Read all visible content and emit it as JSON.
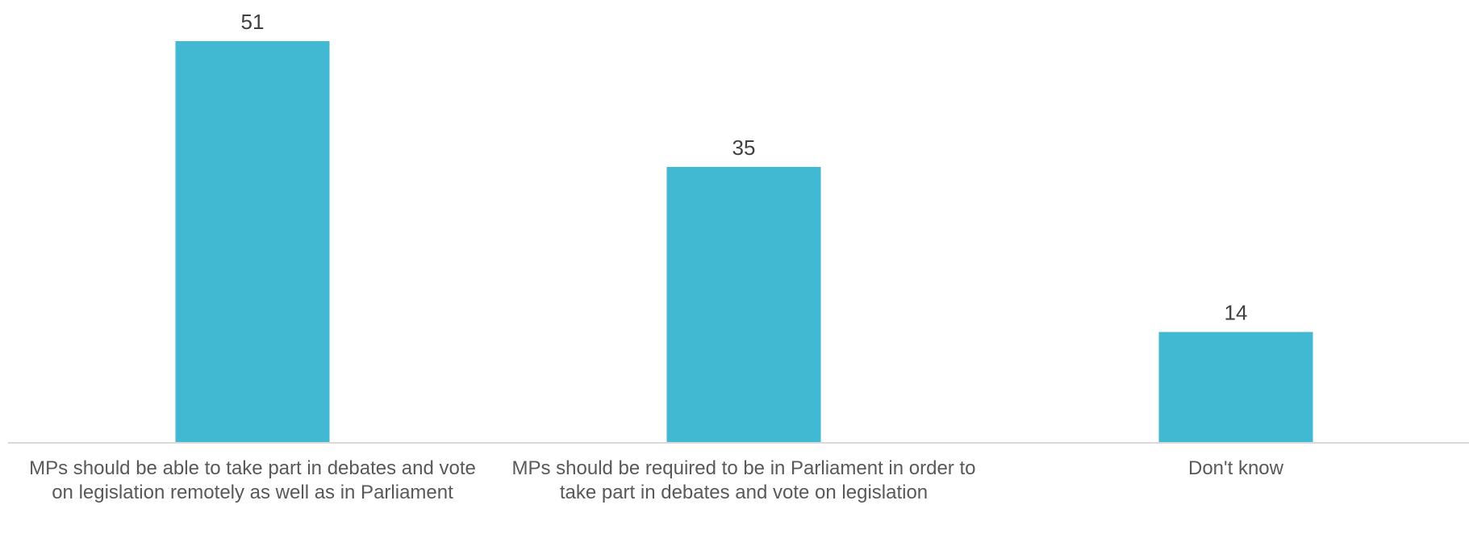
{
  "chart_data": {
    "type": "bar",
    "title": "",
    "xlabel": "",
    "ylabel": "",
    "categories": [
      "MPs should be able to take part in debates and vote on legislation remotely as well as in Parliament",
      "MPs should be required to be in Parliament in order to take part in debates and vote on legislation",
      "Don't know"
    ],
    "values": [
      51,
      35,
      14
    ],
    "data_labels": [
      "51",
      "35",
      "14"
    ],
    "ylim": [
      0,
      51
    ],
    "grid": false,
    "legend": "none",
    "colors": {
      "bar": "#41B9D2",
      "axis": "#D9D9D9",
      "data_label": "#404040",
      "category_label": "#595959"
    }
  }
}
